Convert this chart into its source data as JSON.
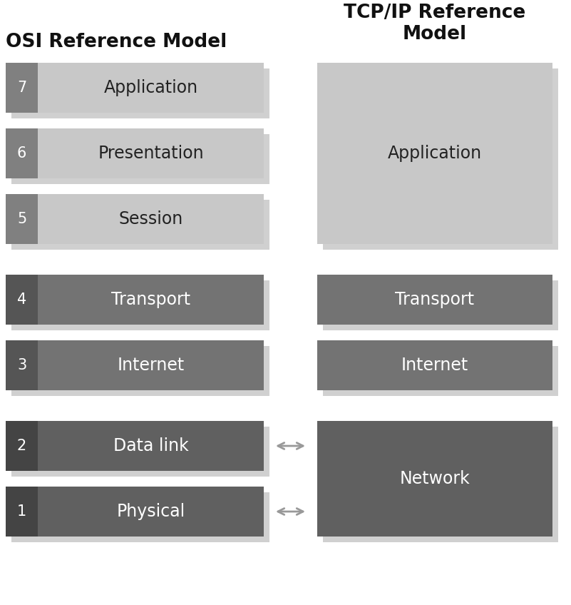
{
  "bg_color": "#ffffff",
  "osi_title": "OSI Reference Model",
  "tcp_title": "TCP/IP Reference\nModel",
  "shadow_color": "#d0d0d0",
  "text_white": "#ffffff",
  "text_dark": "#222222",
  "osi_layers": [
    {
      "num": 7,
      "label": "Application",
      "box_color": "#c8c8c8",
      "num_color": "#808080"
    },
    {
      "num": 6,
      "label": "Presentation",
      "box_color": "#c8c8c8",
      "num_color": "#808080"
    },
    {
      "num": 5,
      "label": "Session",
      "box_color": "#c8c8c8",
      "num_color": "#808080"
    },
    {
      "num": 4,
      "label": "Transport",
      "box_color": "#737373",
      "num_color": "#555555"
    },
    {
      "num": 3,
      "label": "Internet",
      "box_color": "#737373",
      "num_color": "#555555"
    },
    {
      "num": 2,
      "label": "Data link",
      "box_color": "#606060",
      "num_color": "#444444"
    },
    {
      "num": 1,
      "label": "Physical",
      "box_color": "#606060",
      "num_color": "#444444"
    }
  ],
  "tcp_layers": [
    {
      "label": "Application",
      "box_color": "#c8c8c8",
      "slots": [
        5,
        6,
        7
      ]
    },
    {
      "label": "Transport",
      "box_color": "#737373",
      "slots": [
        4
      ]
    },
    {
      "label": "Internet",
      "box_color": "#737373",
      "slots": [
        3
      ]
    },
    {
      "label": "Network",
      "box_color": "#606060",
      "slots": [
        1,
        2
      ]
    }
  ],
  "figsize": [
    8.01,
    8.48
  ],
  "dpi": 100
}
